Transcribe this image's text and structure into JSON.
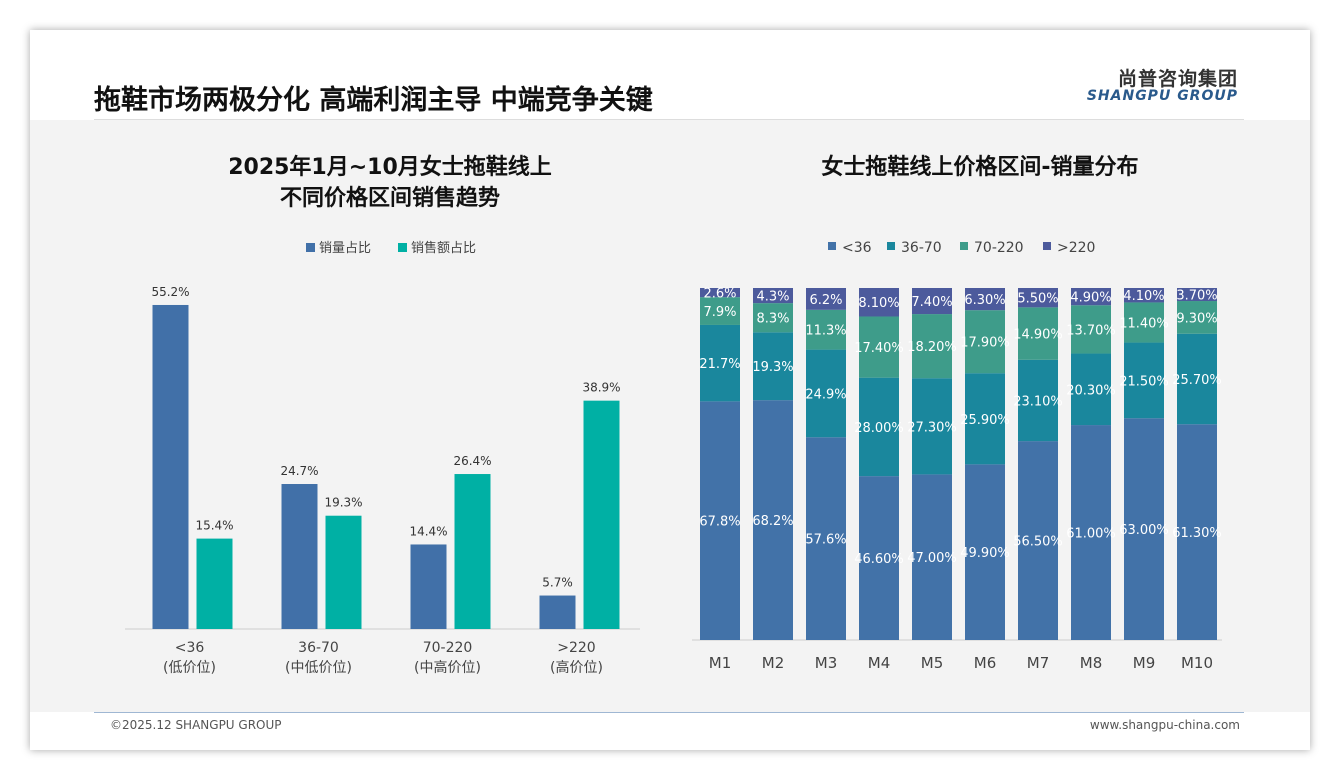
{
  "header": {
    "title": "拖鞋市场两极分化 高端利润主导 中端竞争关键",
    "logo_cn": "尚普咨询集团",
    "logo_en": "SHANGPU GROUP"
  },
  "footer": {
    "copyright": "©2025.12 SHANGPU GROUP",
    "website": "www.shangpu-china.com"
  },
  "colors": {
    "blue": "#4170a8",
    "teal": "#00b0a4",
    "c1": "#4272a8",
    "c2": "#1a879d",
    "c3": "#3e9c8a",
    "c4": "#4c5a9c"
  },
  "chart_data": [
    {
      "type": "bar",
      "title_line1": "2025年1月~10月女士拖鞋线上",
      "title_line2": "不同价格区间销售趋势",
      "categories": [
        "<36",
        "36-70",
        "70-220",
        ">220"
      ],
      "category_sublabels": [
        "(低价位)",
        "(中低价位)",
        "(中高价位)",
        "(高价位)"
      ],
      "series": [
        {
          "name": "销量占比",
          "values": [
            55.2,
            24.7,
            14.4,
            5.7
          ],
          "labels": [
            "55.2%",
            "24.7%",
            "14.4%",
            "5.7%"
          ]
        },
        {
          "name": "销售额占比",
          "values": [
            15.4,
            19.3,
            26.4,
            38.9
          ],
          "labels": [
            "15.4%",
            "19.3%",
            "26.4%",
            "38.9%"
          ]
        }
      ],
      "legend": "top",
      "unit": "%"
    },
    {
      "type": "bar",
      "stacked": true,
      "title": "女士拖鞋线上价格区间-销量分布",
      "categories": [
        "M1",
        "M2",
        "M3",
        "M4",
        "M5",
        "M6",
        "M7",
        "M8",
        "M9",
        "M10"
      ],
      "series": [
        {
          "name": "<36",
          "values": [
            67.8,
            68.2,
            57.6,
            46.6,
            47.0,
            49.9,
            56.5,
            61.0,
            63.0,
            61.3
          ],
          "labels": [
            "67.8%",
            "68.2%",
            "57.6%",
            "46.60%",
            "47.00%",
            "49.90%",
            "56.50%",
            "61.00%",
            "63.00%",
            "61.30%"
          ]
        },
        {
          "name": "36-70",
          "values": [
            21.7,
            19.3,
            24.9,
            28.0,
            27.3,
            25.9,
            23.1,
            20.3,
            21.5,
            25.7
          ],
          "labels": [
            "21.7%",
            "19.3%",
            "24.9%",
            "28.00%",
            "27.30%",
            "25.90%",
            "23.10%",
            "20.30%",
            "21.50%",
            "25.70%"
          ]
        },
        {
          "name": "70-220",
          "values": [
            7.9,
            8.3,
            11.3,
            17.4,
            18.2,
            17.9,
            14.9,
            13.7,
            11.4,
            9.3
          ],
          "labels": [
            "7.9%",
            "8.3%",
            "11.3%",
            "17.40%",
            "18.20%",
            "17.90%",
            "14.90%",
            "13.70%",
            "11.40%",
            "9.30%"
          ]
        },
        {
          "name": ">220",
          "values": [
            2.6,
            4.3,
            6.2,
            8.1,
            7.4,
            6.3,
            5.5,
            4.9,
            4.1,
            3.7
          ],
          "labels": [
            "2.6%",
            "4.3%",
            "6.2%",
            "8.10%",
            "7.40%",
            "6.30%",
            "5.50%",
            "4.90%",
            "4.10%",
            "3.70%"
          ]
        }
      ],
      "legend": "top",
      "unit": "%"
    }
  ]
}
